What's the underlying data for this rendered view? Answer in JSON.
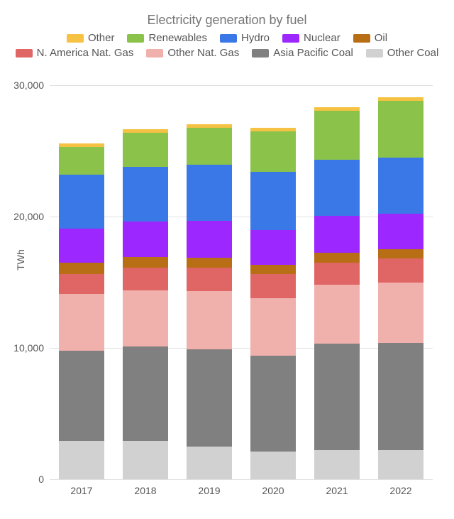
{
  "chart": {
    "type": "stacked-bar",
    "title": "Electricity generation by fuel",
    "title_fontsize": 18,
    "title_color": "#757575",
    "background_color": "#ffffff",
    "grid_color": "#e0e0e0",
    "text_color": "#555555",
    "label_fontsize": 14,
    "y_axis_title": "TWh",
    "ylim": [
      0,
      30000
    ],
    "ytick_step": 10000,
    "yticks": [
      0,
      10000,
      20000,
      30000
    ],
    "ytick_labels": [
      "0",
      "10,000",
      "20,000",
      "30,000"
    ],
    "categories": [
      "2017",
      "2018",
      "2019",
      "2020",
      "2021",
      "2022"
    ],
    "bar_width": 0.72,
    "series": [
      {
        "key": "other_coal",
        "label": "Other Coal",
        "color": "#d1d1d1"
      },
      {
        "key": "asia_pacific_coal",
        "label": "Asia Pacific Coal",
        "color": "#808080"
      },
      {
        "key": "other_nat_gas",
        "label": "Other Nat. Gas",
        "color": "#f0b0ac"
      },
      {
        "key": "na_nat_gas",
        "label": "N. America Nat. Gas",
        "color": "#e06666"
      },
      {
        "key": "oil",
        "label": "Oil",
        "color": "#b86e14"
      },
      {
        "key": "nuclear",
        "label": "Nuclear",
        "color": "#9c27ff"
      },
      {
        "key": "hydro",
        "label": "Hydro",
        "color": "#3b78e7"
      },
      {
        "key": "renewables",
        "label": "Renewables",
        "color": "#8bc34a"
      },
      {
        "key": "other",
        "label": "Other",
        "color": "#f6c244"
      }
    ],
    "legend_order": [
      "other",
      "renewables",
      "hydro",
      "nuclear",
      "oil",
      "na_nat_gas",
      "other_nat_gas",
      "asia_pacific_coal",
      "other_coal"
    ],
    "data": {
      "other_coal": [
        2900,
        2900,
        2500,
        2100,
        2200,
        2200
      ],
      "asia_pacific_coal": [
        6900,
        7200,
        7400,
        7300,
        8100,
        8200
      ],
      "other_nat_gas": [
        4300,
        4300,
        4400,
        4400,
        4500,
        4600
      ],
      "na_nat_gas": [
        1500,
        1700,
        1800,
        1800,
        1700,
        1800
      ],
      "oil": [
        900,
        800,
        750,
        700,
        750,
        700
      ],
      "nuclear": [
        2600,
        2700,
        2800,
        2700,
        2800,
        2700
      ],
      "hydro": [
        4100,
        4200,
        4300,
        4400,
        4300,
        4300
      ],
      "renewables": [
        2100,
        2600,
        2800,
        3100,
        3700,
        4300
      ],
      "other": [
        250,
        270,
        280,
        280,
        300,
        300
      ]
    }
  }
}
